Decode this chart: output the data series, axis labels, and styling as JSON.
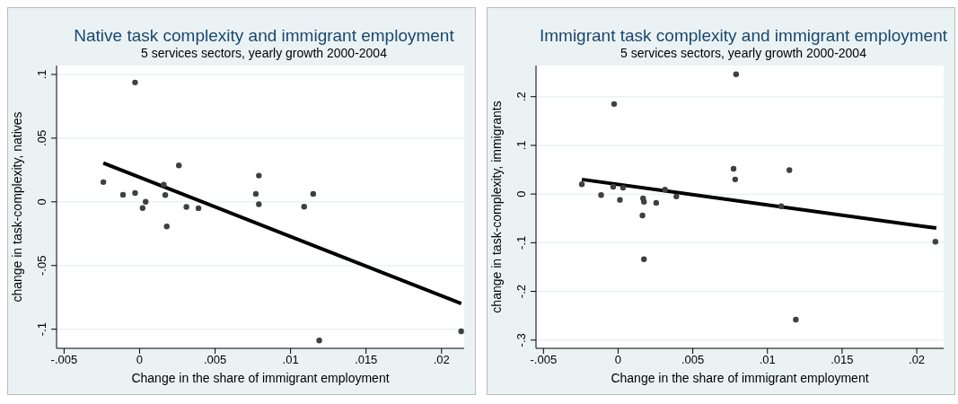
{
  "chart_data": [
    {
      "type": "scatter",
      "title": "Native task complexity and immigrant employment",
      "subtitle": "5 services sectors, yearly growth 2000-2004",
      "xlabel": "Change in the share of immigrant employment",
      "ylabel": "change in task-complexity, natives",
      "grid": "y",
      "xlim": [
        -0.0055,
        0.0215
      ],
      "xticks": [
        {
          "value": -0.005,
          "label": "-.005"
        },
        0,
        {
          "value": 0.005,
          "label": ".005"
        },
        {
          "value": 0.01,
          "label": ".01"
        },
        {
          "value": 0.015,
          "label": ".015"
        },
        {
          "value": 0.02,
          "label": ".02"
        }
      ],
      "ylim": [
        -0.115,
        0.107
      ],
      "yticks": [
        {
          "value": -0.1,
          "label": "-.1"
        },
        {
          "value": -0.05,
          "label": "-.05"
        },
        0,
        {
          "value": 0.05,
          "label": ".05"
        },
        {
          "value": 0.1,
          "label": ".1"
        }
      ],
      "series": [
        {
          "marker": "circle",
          "color": "#404040",
          "x": [
            -0.0024,
            -0.0011,
            -0.0003,
            -0.0003,
            0.0002,
            0.0004,
            0.0016,
            0.0017,
            0.0018,
            0.0026,
            0.0031,
            0.0039,
            0.0077,
            0.0079,
            0.0079,
            0.0109,
            0.0115,
            0.0119,
            0.0213
          ],
          "values": [
            0.0155,
            0.0056,
            0.007,
            0.0937,
            -0.0049,
            0,
            0.0135,
            0.0053,
            -0.0193,
            0.0286,
            -0.004,
            -0.005,
            0.0063,
            0.0206,
            -0.0019,
            -0.0038,
            0.0063,
            -0.1088,
            -0.1016
          ]
        },
        {
          "type": "line",
          "marker": "none",
          "color": "#000000",
          "x": [
            -0.0024,
            0.0213
          ],
          "values": [
            0.0304,
            -0.0798
          ]
        }
      ]
    },
    {
      "type": "scatter",
      "title": "Immigrant task complexity and immigrant employment",
      "subtitle": "5 services sectors, yearly growth 2000-2004",
      "xlabel": "Change in the share of immigrant employment",
      "ylabel": "change in task-complexity, immigrants",
      "grid": "y",
      "xlim": [
        -0.0055,
        0.0218
      ],
      "xticks": [
        {
          "value": -0.005,
          "label": "-.005"
        },
        0,
        {
          "value": 0.005,
          "label": ".005"
        },
        {
          "value": 0.01,
          "label": ".01"
        },
        {
          "value": 0.015,
          "label": ".015"
        },
        {
          "value": 0.02,
          "label": ".02"
        }
      ],
      "ylim": [
        -0.317,
        0.264
      ],
      "yticks": [
        {
          "value": -0.3,
          "label": "-.3"
        },
        {
          "value": -0.2,
          "label": "-.2"
        },
        {
          "value": -0.1,
          "label": "-.1"
        },
        0,
        {
          "value": 0.1,
          "label": ".1"
        },
        {
          "value": 0.2,
          "label": ".2"
        }
      ],
      "series": [
        {
          "marker": "circle",
          "color": "#404040",
          "x": [
            -0.00243,
            -0.00114,
            -0.00033,
            -0.00027,
            0.00012,
            0.00033,
            0.00163,
            0.00167,
            0.00173,
            0.00173,
            0.00255,
            0.00314,
            0.0039,
            0.00773,
            0.00784,
            0.0079,
            0.01092,
            0.01147,
            0.0119,
            0.02125
          ],
          "values": [
            0.02,
            -0.002,
            0.015,
            0.185,
            -0.012,
            0.013,
            -0.044,
            -0.009,
            -0.016,
            -0.134,
            -0.018,
            0.009,
            -0.005,
            0.052,
            0.03,
            0.246,
            -0.025,
            0.049,
            -0.258,
            -0.098
          ]
        },
        {
          "type": "line",
          "marker": "none",
          "color": "#000000",
          "x": [
            -0.00243,
            0.02131
          ],
          "values": [
            0.03,
            -0.07
          ]
        }
      ]
    }
  ]
}
